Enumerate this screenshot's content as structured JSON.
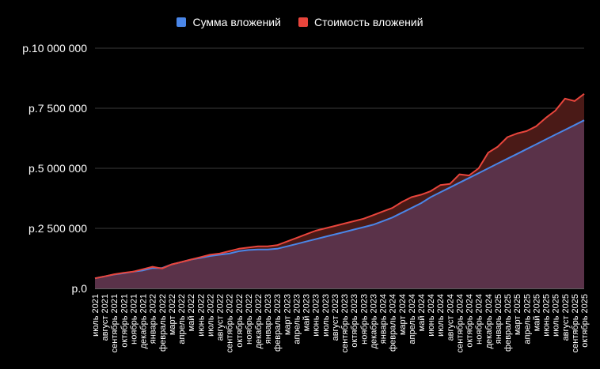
{
  "chart_data": {
    "type": "area",
    "title": "",
    "xlabel": "",
    "ylabel": "",
    "ylim": [
      0,
      10000000
    ],
    "yticks": [
      0,
      2500000,
      5000000,
      7500000,
      10000000
    ],
    "ytick_labels": [
      "р.0",
      "р.2 500 000",
      "р.5 000 000",
      "р.7 500 000",
      "р.10 000 000"
    ],
    "grid": true,
    "legend": "top",
    "categories": [
      "июль 2021",
      "август 2021",
      "сентябрь 2021",
      "октябрь 2021",
      "ноябрь 2021",
      "декабрь 2021",
      "январь 2022",
      "февраль 2022",
      "март 2022",
      "апрель 2022",
      "май 2022",
      "июнь 2022",
      "июль 2022",
      "август 2022",
      "сентябрь 2022",
      "октябрь 2022",
      "ноябрь 2022",
      "декабрь 2022",
      "январь 2023",
      "февраль 2023",
      "март 2023",
      "апрель 2023",
      "май 2023",
      "июнь 2023",
      "июль 2023",
      "август 2023",
      "сентябрь 2023",
      "октябрь 2023",
      "ноябрь 2023",
      "декабрь 2023",
      "январь 2024",
      "февраль 2024",
      "март 2024",
      "апрель 2024",
      "май 2024",
      "июнь 2024",
      "июль 2024",
      "август 2024",
      "сентябрь 2024",
      "октябрь 2024",
      "ноябрь 2024",
      "декабрь 2024",
      "январь 2025",
      "февраль 2025",
      "март 2025",
      "апрель 2025",
      "май 2025",
      "июнь 2025",
      "июль 2025",
      "август 2025",
      "сентябрь 2025",
      "октябрь 2025"
    ],
    "series": [
      {
        "name": "Сумма вложений",
        "color": "#4a86e8",
        "values": [
          420000,
          500000,
          580000,
          630000,
          700000,
          750000,
          850000,
          850000,
          1000000,
          1100000,
          1200000,
          1270000,
          1350000,
          1400000,
          1450000,
          1550000,
          1600000,
          1620000,
          1620000,
          1650000,
          1750000,
          1850000,
          1950000,
          2050000,
          2150000,
          2250000,
          2350000,
          2450000,
          2550000,
          2650000,
          2800000,
          2950000,
          3150000,
          3350000,
          3550000,
          3800000,
          4000000,
          4200000,
          4400000,
          4600000,
          4800000,
          5000000,
          5200000,
          5400000,
          5600000,
          5800000,
          6000000,
          6200000,
          6400000,
          6600000,
          6800000,
          7000000
        ]
      },
      {
        "name": "Стоимость вложений",
        "color": "#e8453c",
        "values": [
          420000,
          500000,
          590000,
          650000,
          700000,
          800000,
          900000,
          830000,
          1000000,
          1100000,
          1200000,
          1300000,
          1400000,
          1450000,
          1550000,
          1650000,
          1700000,
          1750000,
          1750000,
          1800000,
          1950000,
          2100000,
          2250000,
          2400000,
          2500000,
          2600000,
          2700000,
          2800000,
          2900000,
          3050000,
          3200000,
          3350000,
          3600000,
          3800000,
          3900000,
          4050000,
          4300000,
          4350000,
          4750000,
          4700000,
          5000000,
          5650000,
          5900000,
          6300000,
          6450000,
          6550000,
          6750000,
          7100000,
          7400000,
          7900000,
          7800000,
          8100000
        ]
      }
    ]
  }
}
